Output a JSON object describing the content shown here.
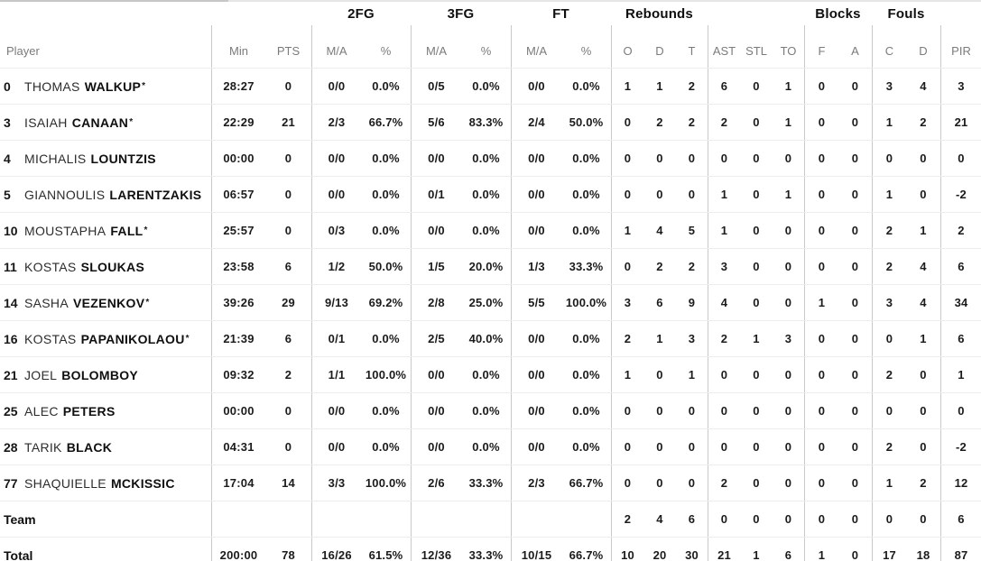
{
  "colors": {
    "text": "#1b1b1b",
    "subheader_text": "#7b7b7b",
    "column_separator": "#c9c9c9",
    "row_separator": "#ededed"
  },
  "table": {
    "groups": [
      "2FG",
      "3FG",
      "FT",
      "Rebounds",
      "Blocks",
      "Fouls"
    ],
    "columns": [
      "Player",
      "Min",
      "PTS",
      "M/A",
      "%",
      "M/A",
      "%",
      "M/A",
      "%",
      "O",
      "D",
      "T",
      "AST",
      "STL",
      "TO",
      "F",
      "A",
      "C",
      "D",
      "PIR"
    ],
    "starter_mark": "*",
    "players": [
      {
        "number": "0",
        "first": "THOMAS",
        "last": "WALKUP",
        "starter": true,
        "min": "28:27",
        "pts": "0",
        "fg2": "0/0",
        "fg2p": "0.0%",
        "fg3": "0/5",
        "fg3p": "0.0%",
        "ft": "0/0",
        "ftp": "0.0%",
        "ro": "1",
        "rd": "1",
        "rt": "2",
        "ast": "6",
        "stl": "0",
        "to": "1",
        "bf": "0",
        "ba": "0",
        "fc": "3",
        "fd": "4",
        "pir": "3"
      },
      {
        "number": "3",
        "first": "ISAIAH",
        "last": "CANAAN",
        "starter": true,
        "min": "22:29",
        "pts": "21",
        "fg2": "2/3",
        "fg2p": "66.7%",
        "fg3": "5/6",
        "fg3p": "83.3%",
        "ft": "2/4",
        "ftp": "50.0%",
        "ro": "0",
        "rd": "2",
        "rt": "2",
        "ast": "2",
        "stl": "0",
        "to": "1",
        "bf": "0",
        "ba": "0",
        "fc": "1",
        "fd": "2",
        "pir": "21"
      },
      {
        "number": "4",
        "first": "MICHALIS",
        "last": "LOUNTZIS",
        "starter": false,
        "min": "00:00",
        "pts": "0",
        "fg2": "0/0",
        "fg2p": "0.0%",
        "fg3": "0/0",
        "fg3p": "0.0%",
        "ft": "0/0",
        "ftp": "0.0%",
        "ro": "0",
        "rd": "0",
        "rt": "0",
        "ast": "0",
        "stl": "0",
        "to": "0",
        "bf": "0",
        "ba": "0",
        "fc": "0",
        "fd": "0",
        "pir": "0"
      },
      {
        "number": "5",
        "first": "GIANNOULIS",
        "last": "LARENTZAKIS",
        "starter": false,
        "min": "06:57",
        "pts": "0",
        "fg2": "0/0",
        "fg2p": "0.0%",
        "fg3": "0/1",
        "fg3p": "0.0%",
        "ft": "0/0",
        "ftp": "0.0%",
        "ro": "0",
        "rd": "0",
        "rt": "0",
        "ast": "1",
        "stl": "0",
        "to": "1",
        "bf": "0",
        "ba": "0",
        "fc": "1",
        "fd": "0",
        "pir": "-2"
      },
      {
        "number": "10",
        "first": "MOUSTAPHA",
        "last": "FALL",
        "starter": true,
        "min": "25:57",
        "pts": "0",
        "fg2": "0/3",
        "fg2p": "0.0%",
        "fg3": "0/0",
        "fg3p": "0.0%",
        "ft": "0/0",
        "ftp": "0.0%",
        "ro": "1",
        "rd": "4",
        "rt": "5",
        "ast": "1",
        "stl": "0",
        "to": "0",
        "bf": "0",
        "ba": "0",
        "fc": "2",
        "fd": "1",
        "pir": "2"
      },
      {
        "number": "11",
        "first": "KOSTAS",
        "last": "SLOUKAS",
        "starter": false,
        "min": "23:58",
        "pts": "6",
        "fg2": "1/2",
        "fg2p": "50.0%",
        "fg3": "1/5",
        "fg3p": "20.0%",
        "ft": "1/3",
        "ftp": "33.3%",
        "ro": "0",
        "rd": "2",
        "rt": "2",
        "ast": "3",
        "stl": "0",
        "to": "0",
        "bf": "0",
        "ba": "0",
        "fc": "2",
        "fd": "4",
        "pir": "6"
      },
      {
        "number": "14",
        "first": "SASHA",
        "last": "VEZENKOV",
        "starter": true,
        "min": "39:26",
        "pts": "29",
        "fg2": "9/13",
        "fg2p": "69.2%",
        "fg3": "2/8",
        "fg3p": "25.0%",
        "ft": "5/5",
        "ftp": "100.0%",
        "ro": "3",
        "rd": "6",
        "rt": "9",
        "ast": "4",
        "stl": "0",
        "to": "0",
        "bf": "1",
        "ba": "0",
        "fc": "3",
        "fd": "4",
        "pir": "34"
      },
      {
        "number": "16",
        "first": "KOSTAS",
        "last": "PAPANIKOLAOU",
        "starter": true,
        "min": "21:39",
        "pts": "6",
        "fg2": "0/1",
        "fg2p": "0.0%",
        "fg3": "2/5",
        "fg3p": "40.0%",
        "ft": "0/0",
        "ftp": "0.0%",
        "ro": "2",
        "rd": "1",
        "rt": "3",
        "ast": "2",
        "stl": "1",
        "to": "3",
        "bf": "0",
        "ba": "0",
        "fc": "0",
        "fd": "1",
        "pir": "6"
      },
      {
        "number": "21",
        "first": "JOEL",
        "last": "BOLOMBOY",
        "starter": false,
        "min": "09:32",
        "pts": "2",
        "fg2": "1/1",
        "fg2p": "100.0%",
        "fg3": "0/0",
        "fg3p": "0.0%",
        "ft": "0/0",
        "ftp": "0.0%",
        "ro": "1",
        "rd": "0",
        "rt": "1",
        "ast": "0",
        "stl": "0",
        "to": "0",
        "bf": "0",
        "ba": "0",
        "fc": "2",
        "fd": "0",
        "pir": "1"
      },
      {
        "number": "25",
        "first": "ALEC",
        "last": "PETERS",
        "starter": false,
        "min": "00:00",
        "pts": "0",
        "fg2": "0/0",
        "fg2p": "0.0%",
        "fg3": "0/0",
        "fg3p": "0.0%",
        "ft": "0/0",
        "ftp": "0.0%",
        "ro": "0",
        "rd": "0",
        "rt": "0",
        "ast": "0",
        "stl": "0",
        "to": "0",
        "bf": "0",
        "ba": "0",
        "fc": "0",
        "fd": "0",
        "pir": "0"
      },
      {
        "number": "28",
        "first": "TARIK",
        "last": "BLACK",
        "starter": false,
        "min": "04:31",
        "pts": "0",
        "fg2": "0/0",
        "fg2p": "0.0%",
        "fg3": "0/0",
        "fg3p": "0.0%",
        "ft": "0/0",
        "ftp": "0.0%",
        "ro": "0",
        "rd": "0",
        "rt": "0",
        "ast": "0",
        "stl": "0",
        "to": "0",
        "bf": "0",
        "ba": "0",
        "fc": "2",
        "fd": "0",
        "pir": "-2"
      },
      {
        "number": "77",
        "first": "SHAQUIELLE",
        "last": "MCKISSIC",
        "starter": false,
        "min": "17:04",
        "pts": "14",
        "fg2": "3/3",
        "fg2p": "100.0%",
        "fg3": "2/6",
        "fg3p": "33.3%",
        "ft": "2/3",
        "ftp": "66.7%",
        "ro": "0",
        "rd": "0",
        "rt": "0",
        "ast": "2",
        "stl": "0",
        "to": "0",
        "bf": "0",
        "ba": "0",
        "fc": "1",
        "fd": "2",
        "pir": "12"
      }
    ],
    "team": {
      "label": "Team",
      "min": "",
      "pts": "",
      "fg2": "",
      "fg2p": "",
      "fg3": "",
      "fg3p": "",
      "ft": "",
      "ftp": "",
      "ro": "2",
      "rd": "4",
      "rt": "6",
      "ast": "0",
      "stl": "0",
      "to": "0",
      "bf": "0",
      "ba": "0",
      "fc": "0",
      "fd": "0",
      "pir": "6"
    },
    "total": {
      "label": "Total",
      "min": "200:00",
      "pts": "78",
      "fg2": "16/26",
      "fg2p": "61.5%",
      "fg3": "12/36",
      "fg3p": "33.3%",
      "ft": "10/15",
      "ftp": "66.7%",
      "ro": "10",
      "rd": "20",
      "rt": "30",
      "ast": "21",
      "stl": "1",
      "to": "6",
      "bf": "1",
      "ba": "0",
      "fc": "17",
      "fd": "18",
      "pir": "87"
    }
  }
}
